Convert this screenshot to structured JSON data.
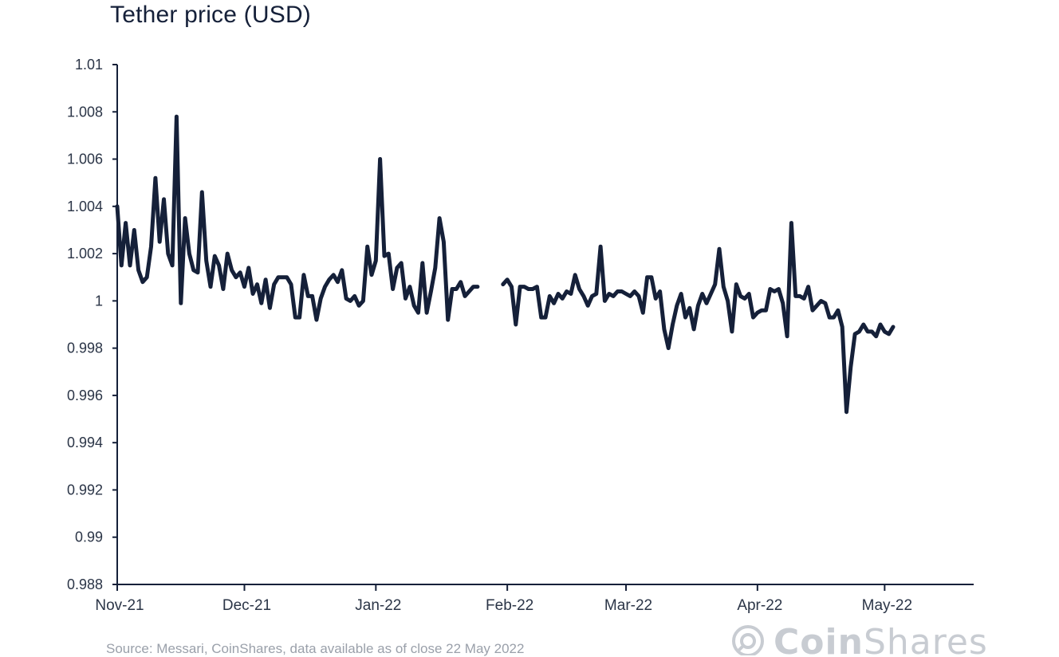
{
  "title": "Tether price (USD)",
  "source": "Source: Messari, CoinShares, data available as of close 22 May 2022",
  "brand": {
    "name_bold": "Coin",
    "name_light": "Shares",
    "icon": "coinshares-logo-icon"
  },
  "colors": {
    "line": "#152039",
    "axis": "#152039",
    "text": "#2b3547",
    "muted": "#9aa0aa"
  },
  "chart_data": {
    "type": "line",
    "title": "Tether price (USD)",
    "xlabel": "",
    "ylabel": "",
    "ylim": [
      0.988,
      1.01
    ],
    "yticks": [
      "1.01",
      "1.008",
      "1.006",
      "1.004",
      "1.002",
      "1",
      "0.998",
      "0.996",
      "0.994",
      "0.992",
      "0.99",
      "0.988"
    ],
    "xticks": [
      "Nov-21",
      "Dec-21",
      "Jan-22",
      "Feb-22",
      "Mar-22",
      "Apr-22",
      "May-22"
    ],
    "xrange": [
      "2021-11-01",
      "2022-05-22"
    ],
    "grid": false,
    "legend": "none",
    "series": [
      {
        "segments": [
          {
            "start": "2021-11-01",
            "values": [
              1.004,
              1.0015,
              1.0033,
              1.0015,
              1.003,
              1.0013,
              1.0008,
              1.001,
              1.0023,
              1.0052,
              1.0025,
              1.0043,
              1.002,
              1.0015,
              1.0078,
              0.9999,
              1.0035,
              1.002,
              1.0013,
              1.0012,
              1.0046,
              1.0017,
              1.0006,
              1.0019,
              1.0015,
              1.0005,
              1.002,
              1.0013,
              1.001,
              1.0012,
              1.0006,
              1.0014,
              1.0003,
              1.0007,
              0.9999,
              1.0009,
              0.9997,
              1.0007,
              1.001,
              1.001,
              1.001,
              1.0007,
              0.9993,
              0.9993,
              1.0011,
              1.0002,
              1.0002,
              0.9992,
              1.0001,
              1.0006,
              1.0009,
              1.0011,
              1.0008,
              1.0013,
              1.0001,
              1.0,
              1.0002,
              0.9998,
              1.0,
              1.0023,
              1.0011,
              1.0017,
              1.006,
              1.0019,
              1.002,
              1.0005,
              1.0014,
              1.0016,
              1.0001,
              1.0006,
              0.9998,
              0.9995,
              1.0016,
              0.9995,
              1.0004,
              1.0014,
              1.0035,
              1.0025,
              0.9992,
              1.0005,
              1.0005,
              1.0008,
              1.0002,
              1.0004,
              1.0006,
              1.0006
            ]
          },
          {
            "start": "2022-01-31",
            "values": [
              1.0007,
              1.0009,
              1.0006,
              0.999,
              1.0006,
              1.0006,
              1.0005,
              1.0005,
              1.0006,
              0.9993,
              0.9993,
              1.0002,
              0.9999,
              1.0003,
              1.0001,
              1.0004,
              1.0003,
              1.0011,
              1.0005,
              1.0002,
              0.9998,
              1.0002,
              1.0003,
              1.0023,
              1.0,
              1.0003,
              1.0002,
              1.0004,
              1.0004,
              1.0003,
              1.0002,
              1.0004,
              1.0002,
              0.9995,
              1.001,
              1.001,
              1.0001,
              1.0004,
              0.9988,
              0.998,
              0.999,
              0.9998,
              1.0003,
              0.9993,
              0.9997,
              0.9988,
              0.9998,
              1.0003,
              0.9999,
              1.0003,
              1.0007,
              1.0022,
              1.0006,
              1.0,
              0.9987,
              1.0007,
              1.0002,
              1.0001,
              1.0003,
              0.9993,
              0.9995,
              0.9996,
              0.9996,
              1.0005,
              1.0004,
              1.0005,
              0.9999,
              0.9985,
              1.0033,
              1.0002,
              1.0002,
              1.0001,
              1.0006,
              0.9996,
              0.9998,
              1.0,
              0.9999,
              0.9993,
              0.9993,
              0.9996,
              0.9989,
              0.9953,
              0.9972,
              0.9986,
              0.9987,
              0.999,
              0.9987,
              0.9987,
              0.9985,
              0.999,
              0.9987,
              0.9986,
              0.9989
            ]
          }
        ]
      }
    ]
  }
}
